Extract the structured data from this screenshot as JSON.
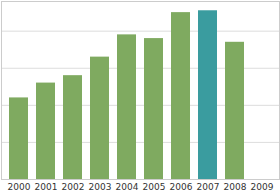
{
  "chart_data": {
    "type": "bar",
    "categories": [
      "2000",
      "2001",
      "2002",
      "2003",
      "2004",
      "2005",
      "2006",
      "2007",
      "2008",
      "2009"
    ],
    "values": [
      2.2,
      2.6,
      2.8,
      3.3,
      3.9,
      3.8,
      4.5,
      4.55,
      3.7,
      null
    ],
    "colors": [
      "#7faa60",
      "#7faa60",
      "#7faa60",
      "#7faa60",
      "#7faa60",
      "#7faa60",
      "#7faa60",
      "#3a9c9f",
      "#7faa60",
      "#7faa60"
    ],
    "ylim": [
      0,
      4.8
    ],
    "yticks": [
      0,
      1,
      2,
      3,
      4
    ],
    "grid": true,
    "tick_labels": "x"
  }
}
